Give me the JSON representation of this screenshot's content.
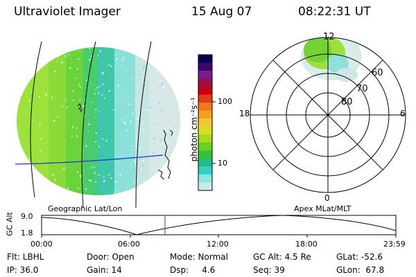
{
  "header": {
    "instrument": "Ultraviolet Imager",
    "date": "15 Aug 07",
    "time": "08:22:31 UT"
  },
  "left_panel": {
    "caption": "Geographic Lat/Lon"
  },
  "right_panel": {
    "caption": "Apex MLat/MLT",
    "mlt_labels": [
      "12",
      "18",
      "6",
      "0"
    ],
    "lat_labels": [
      "60",
      "70",
      "80"
    ]
  },
  "colorbar": {
    "unit_label": "photon cm⁻²s⁻¹",
    "tick_labels": [
      "100",
      "10"
    ],
    "colors": [
      "#000050",
      "#3a0a6a",
      "#7a1e8e",
      "#9a0e45",
      "#c80014",
      "#e23a1a",
      "#f07a1a",
      "#f4a01e",
      "#f5c830",
      "#d8de20",
      "#a4dc1c",
      "#6ad21e",
      "#35c23a",
      "#22be86",
      "#34d0c8",
      "#8ce6e2",
      "#c8ecec"
    ]
  },
  "altitude_strip": {
    "axis_title": "GC Alt",
    "y_labels": [
      "9.0",
      "1.8"
    ],
    "x_labels": [
      "00:00",
      "06:00",
      "12:00",
      "18:00",
      "23:59"
    ],
    "marker_color": "#e01010"
  },
  "info": {
    "row1": {
      "flt": "Flt: LBHL",
      "door": "Door: Open",
      "mode": "Mode: Normal",
      "gcalt": "GC Alt: 4.5 Re",
      "glat": "GLat: -52.6"
    },
    "row2": {
      "ip": "IP: 36.0",
      "gain": "Gain: 14",
      "dsp": "Dsp:     4.6",
      "seq": "Seq: 39",
      "glon": "GLon:  67.8"
    }
  }
}
